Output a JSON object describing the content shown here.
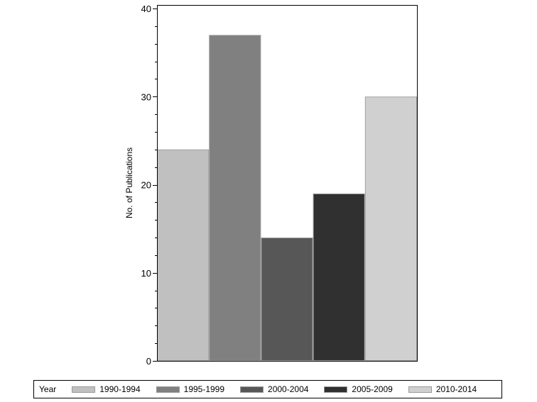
{
  "chart_data": {
    "type": "bar",
    "title": "",
    "xlabel": "",
    "ylabel": "No. of Publications",
    "ylim": [
      0,
      40
    ],
    "yticks": [
      0,
      10,
      20,
      30,
      40
    ],
    "ytick_labels": [
      "0",
      "10",
      "20",
      "30",
      "40"
    ],
    "minor_ticks_per_major": 4,
    "grid": false,
    "categories": [
      "1990-1994",
      "1995-1999",
      "2000-2004",
      "2005-2009",
      "2010-2014"
    ],
    "values": [
      24,
      37,
      14,
      19,
      30
    ],
    "colors": [
      "#c0c0c0",
      "#808080",
      "#575757",
      "#303030",
      "#d0d0d0"
    ],
    "legend": {
      "title": "Year",
      "position": "bottom",
      "entries": [
        "1990-1994",
        "1995-1999",
        "2000-2004",
        "2005-2009",
        "2010-2014"
      ]
    }
  }
}
